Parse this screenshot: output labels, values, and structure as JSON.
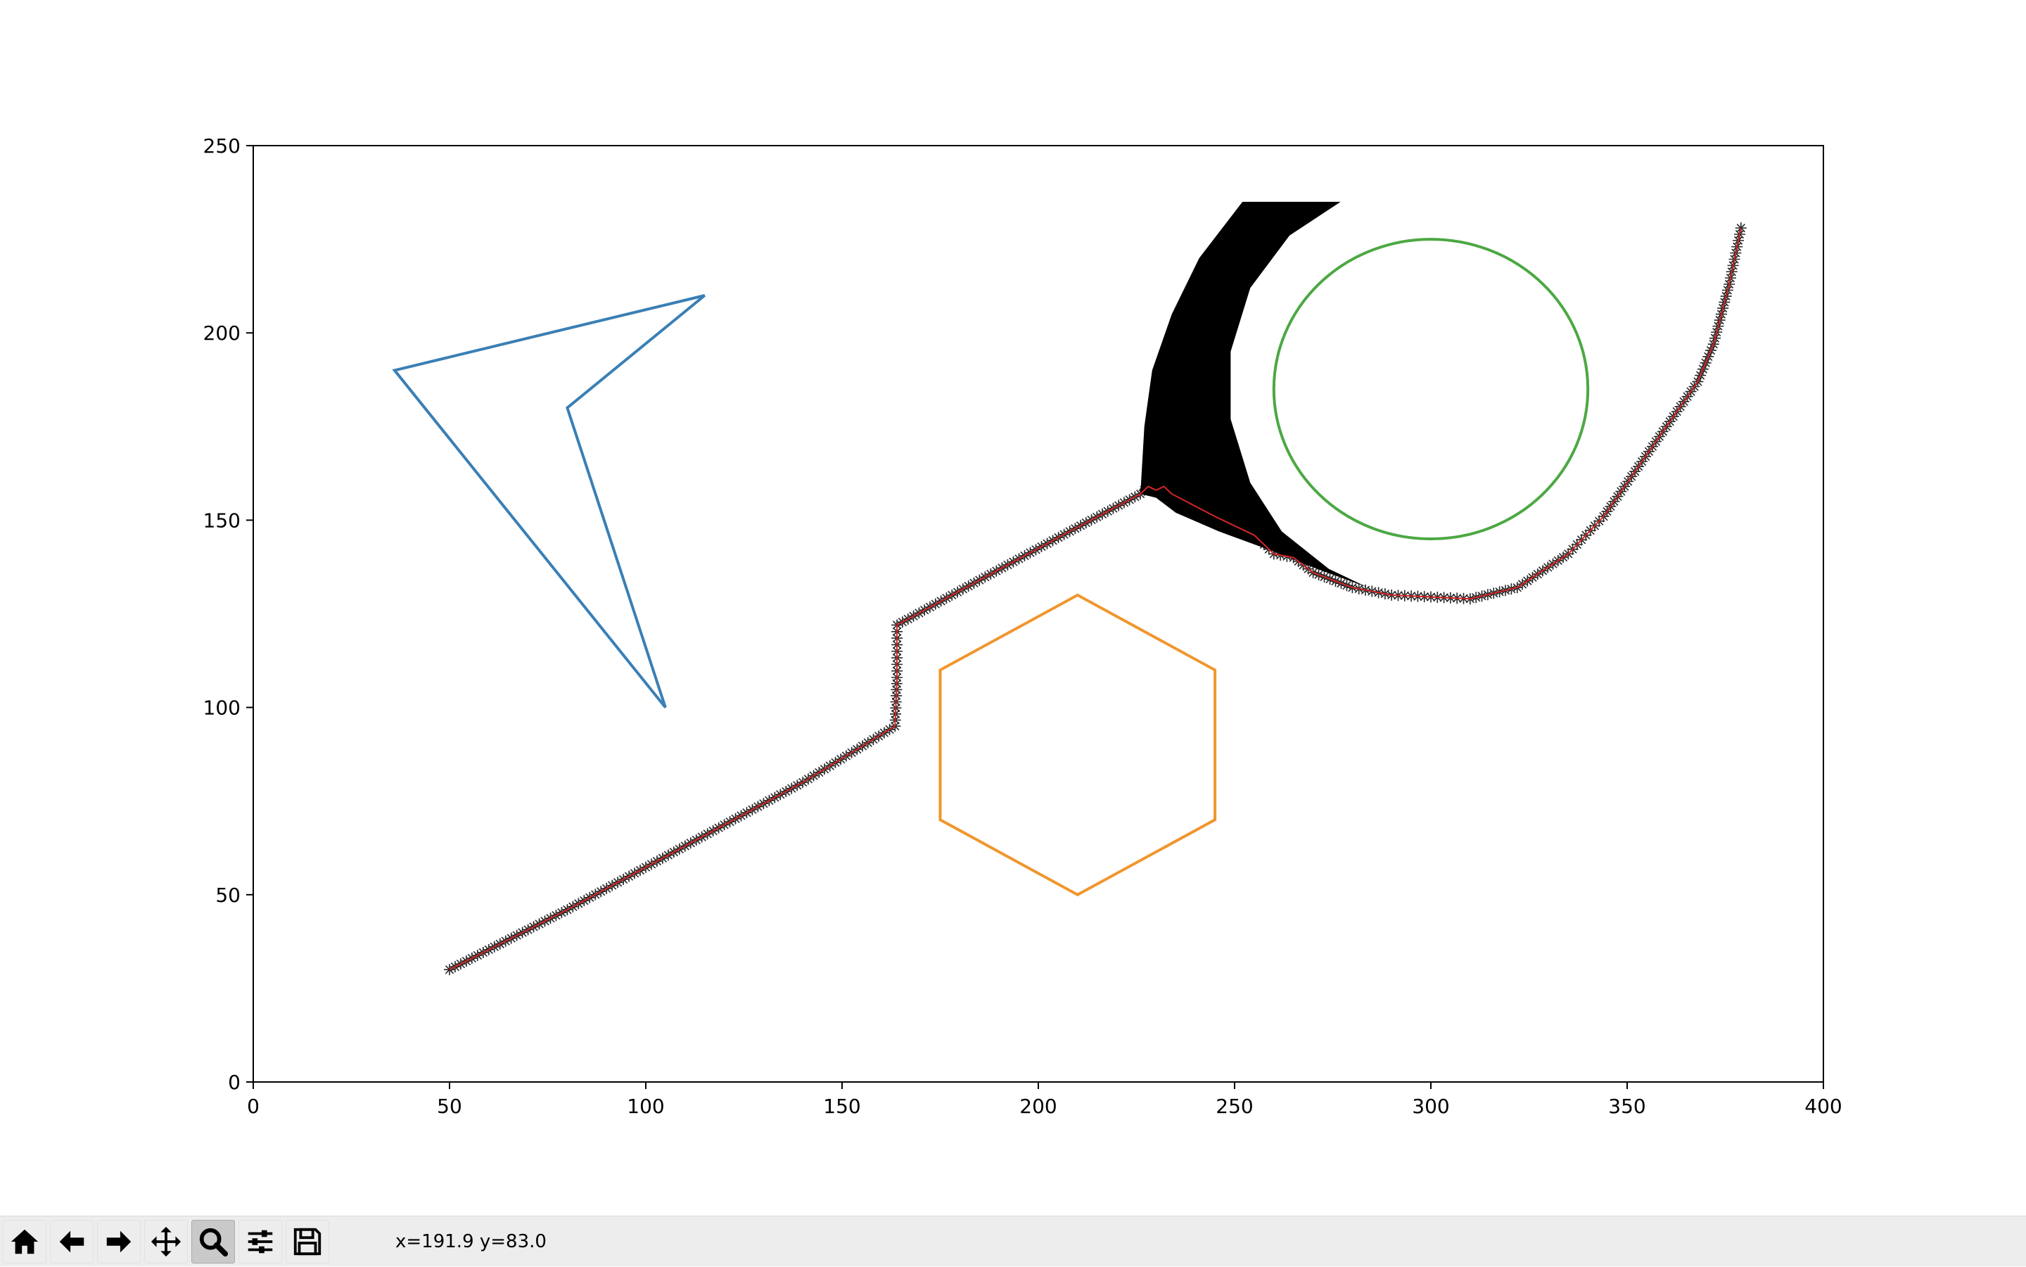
{
  "chart_data": {
    "type": "line",
    "xlim": [
      0,
      400
    ],
    "ylim": [
      0,
      250
    ],
    "x_ticks": [
      0,
      50,
      100,
      150,
      200,
      250,
      300,
      350,
      400
    ],
    "y_ticks": [
      0,
      50,
      100,
      150,
      200,
      250
    ],
    "grid": false,
    "legend": "none",
    "obstacles": [
      {
        "name": "",
        "kind": "polygon",
        "color": "#3a7fb5",
        "points": [
          [
            36,
            190
          ],
          [
            115,
            210
          ],
          [
            80,
            180
          ],
          [
            105,
            100
          ]
        ]
      },
      {
        "name": "",
        "kind": "polygon",
        "color": "#f0962e",
        "points": [
          [
            210,
            130
          ],
          [
            245,
            110
          ],
          [
            245,
            70
          ],
          [
            210,
            50
          ],
          [
            175,
            70
          ],
          [
            175,
            110
          ]
        ]
      },
      {
        "name": "",
        "kind": "circle",
        "color": "#4ca843",
        "center": [
          300,
          185
        ],
        "radius": 40
      }
    ],
    "explored_region": {
      "color": "#000000",
      "points": [
        [
          226,
          157
        ],
        [
          227,
          175
        ],
        [
          229,
          190
        ],
        [
          234,
          205
        ],
        [
          241,
          220
        ],
        [
          252,
          235
        ],
        [
          277,
          235
        ],
        [
          264,
          226
        ],
        [
          254,
          212
        ],
        [
          249,
          195
        ],
        [
          249,
          177
        ],
        [
          254,
          160
        ],
        [
          262,
          147
        ],
        [
          274,
          137
        ],
        [
          284,
          132
        ],
        [
          271,
          137
        ],
        [
          259,
          142
        ],
        [
          246,
          147
        ],
        [
          235,
          152
        ],
        [
          230,
          156
        ]
      ]
    },
    "path": {
      "color": "#d62728",
      "marker_color": "#000000",
      "marker": "*",
      "points": [
        [
          50,
          30
        ],
        [
          80,
          46
        ],
        [
          110,
          63
        ],
        [
          140,
          80
        ],
        [
          163.5,
          95
        ],
        [
          164,
          108
        ],
        [
          164,
          122
        ],
        [
          185,
          134
        ],
        [
          208,
          147
        ],
        [
          226,
          157
        ],
        [
          228,
          159
        ],
        [
          230,
          158
        ],
        [
          232,
          159
        ],
        [
          234,
          157
        ],
        [
          245,
          151
        ],
        [
          255,
          146
        ],
        [
          260,
          141
        ],
        [
          265,
          140
        ],
        [
          270,
          136
        ],
        [
          280,
          132
        ],
        [
          290,
          130
        ],
        [
          310,
          129
        ],
        [
          322,
          132
        ],
        [
          335,
          141
        ],
        [
          344,
          151
        ],
        [
          352,
          163
        ],
        [
          360,
          175
        ],
        [
          368,
          187
        ],
        [
          372,
          197
        ],
        [
          376,
          213
        ],
        [
          379,
          228
        ]
      ]
    }
  },
  "toolbar": {
    "buttons": [
      {
        "name": "home-icon",
        "active": false
      },
      {
        "name": "back-arrow-icon",
        "active": false
      },
      {
        "name": "forward-arrow-icon",
        "active": false
      },
      {
        "name": "pan-move-icon",
        "active": false
      },
      {
        "name": "zoom-magnifier-icon",
        "active": true
      },
      {
        "name": "configure-subplots-icon",
        "active": false
      },
      {
        "name": "save-disk-icon",
        "active": false
      }
    ],
    "coordinates": "x=191.9 y=83.0"
  }
}
